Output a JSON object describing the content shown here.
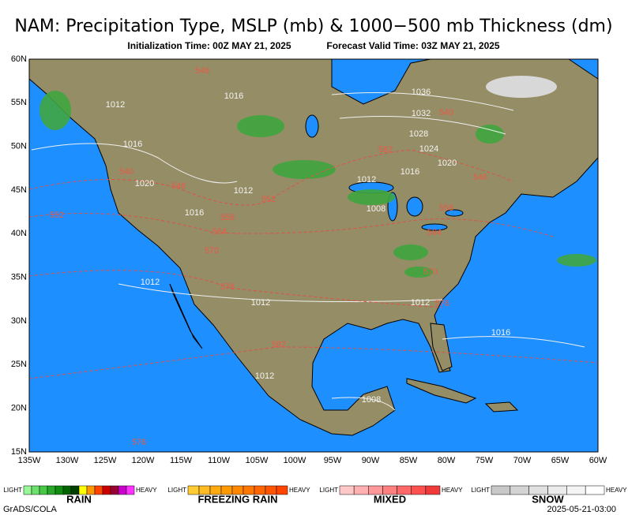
{
  "header": {
    "title": "NAM: Precipitation Type, MSLP (mb) & 1000−500 mb Thickness (dm)",
    "subtitle_init": "Initialization Time: 00Z MAY 21, 2025",
    "subtitle_valid": "Forecast Valid Time: 03Z MAY 21, 2025"
  },
  "map": {
    "lat_labels": [
      "60N",
      "55N",
      "50N",
      "45N",
      "40N",
      "35N",
      "30N",
      "25N",
      "20N",
      "15N"
    ],
    "lon_labels": [
      "135W",
      "130W",
      "125W",
      "120W",
      "115W",
      "110W",
      "105W",
      "100W",
      "95W",
      "90W",
      "85W",
      "80W",
      "75W",
      "70W",
      "65W",
      "60W"
    ],
    "pressure_labels": [
      "1012",
      "1016",
      "1036",
      "1032",
      "1028",
      "1024",
      "1020",
      "1016",
      "1020",
      "1012",
      "1016",
      "1016",
      "1012",
      "1008",
      "1012",
      "1012",
      "1012",
      "1016",
      "1008",
      "1012"
    ],
    "thickness_labels": [
      "546",
      "540",
      "540",
      "546",
      "552",
      "552",
      "558",
      "564",
      "570",
      "576",
      "582",
      "546",
      "558",
      "564",
      "570",
      "576",
      "582",
      "576"
    ]
  },
  "legend": [
    {
      "name": "RAIN",
      "low": "LIGHT",
      "high": "HEAVY"
    },
    {
      "name": "FREEZING RAIN",
      "low": "LIGHT",
      "high": "HEAVY"
    },
    {
      "name": "MIXED",
      "low": "LIGHT",
      "high": "HEAVY"
    },
    {
      "name": "SNOW",
      "low": "LIGHT",
      "high": "HEAVY"
    }
  ],
  "footer": {
    "source": "GrADS/COLA",
    "timestamp": "2025-05-21-03:00"
  }
}
